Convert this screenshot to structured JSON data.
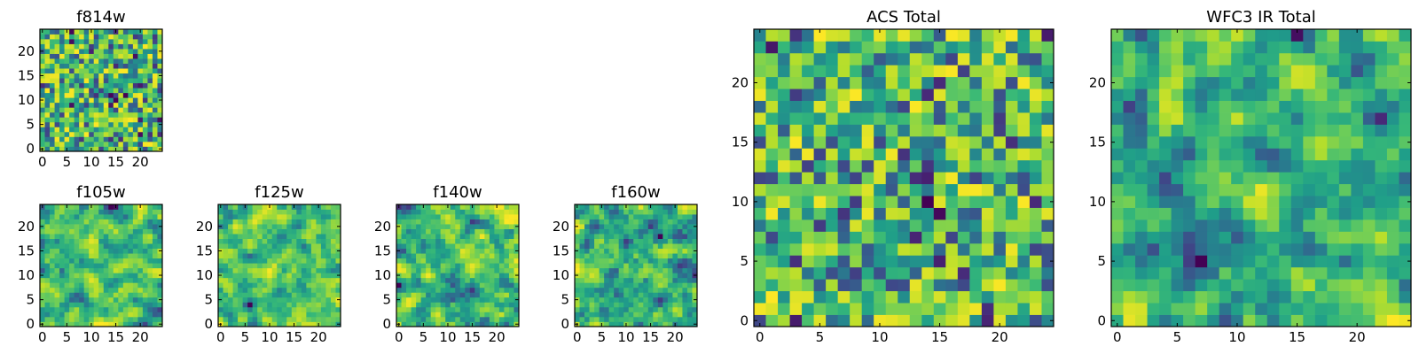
{
  "colormap": "viridis",
  "frame_color": "#000000",
  "chart_data": [
    {
      "type": "heatmap",
      "title": "f814w",
      "grid_size": 25,
      "xticks": [
        0,
        5,
        10,
        15,
        20
      ],
      "yticks": [
        0,
        5,
        10,
        15,
        20
      ],
      "smooth": 0
    },
    {
      "type": "heatmap",
      "title": "f105w",
      "grid_size": 25,
      "xticks": [
        0,
        5,
        10,
        15,
        20
      ],
      "yticks": [
        0,
        5,
        10,
        15,
        20
      ],
      "smooth": 1
    },
    {
      "type": "heatmap",
      "title": "f125w",
      "grid_size": 25,
      "xticks": [
        0,
        5,
        10,
        15,
        20
      ],
      "yticks": [
        0,
        5,
        10,
        15,
        20
      ],
      "smooth": 1
    },
    {
      "type": "heatmap",
      "title": "f140w",
      "grid_size": 25,
      "xticks": [
        0,
        5,
        10,
        15,
        20
      ],
      "yticks": [
        0,
        5,
        10,
        15,
        20
      ],
      "smooth": 1
    },
    {
      "type": "heatmap",
      "title": "f160w",
      "grid_size": 25,
      "xticks": [
        0,
        5,
        10,
        15,
        20
      ],
      "yticks": [
        0,
        5,
        10,
        15,
        20
      ],
      "smooth": 1
    },
    {
      "type": "heatmap",
      "title": "ACS Total",
      "grid_size": 25,
      "xticks": [
        0,
        5,
        10,
        15,
        20
      ],
      "yticks": [
        0,
        5,
        10,
        15,
        20
      ],
      "smooth": 0
    },
    {
      "type": "heatmap",
      "title": "WFC3 IR Total",
      "grid_size": 25,
      "xticks": [
        0,
        5,
        10,
        15,
        20
      ],
      "yticks": [
        0,
        5,
        10,
        15,
        20
      ],
      "smooth": 1
    }
  ]
}
